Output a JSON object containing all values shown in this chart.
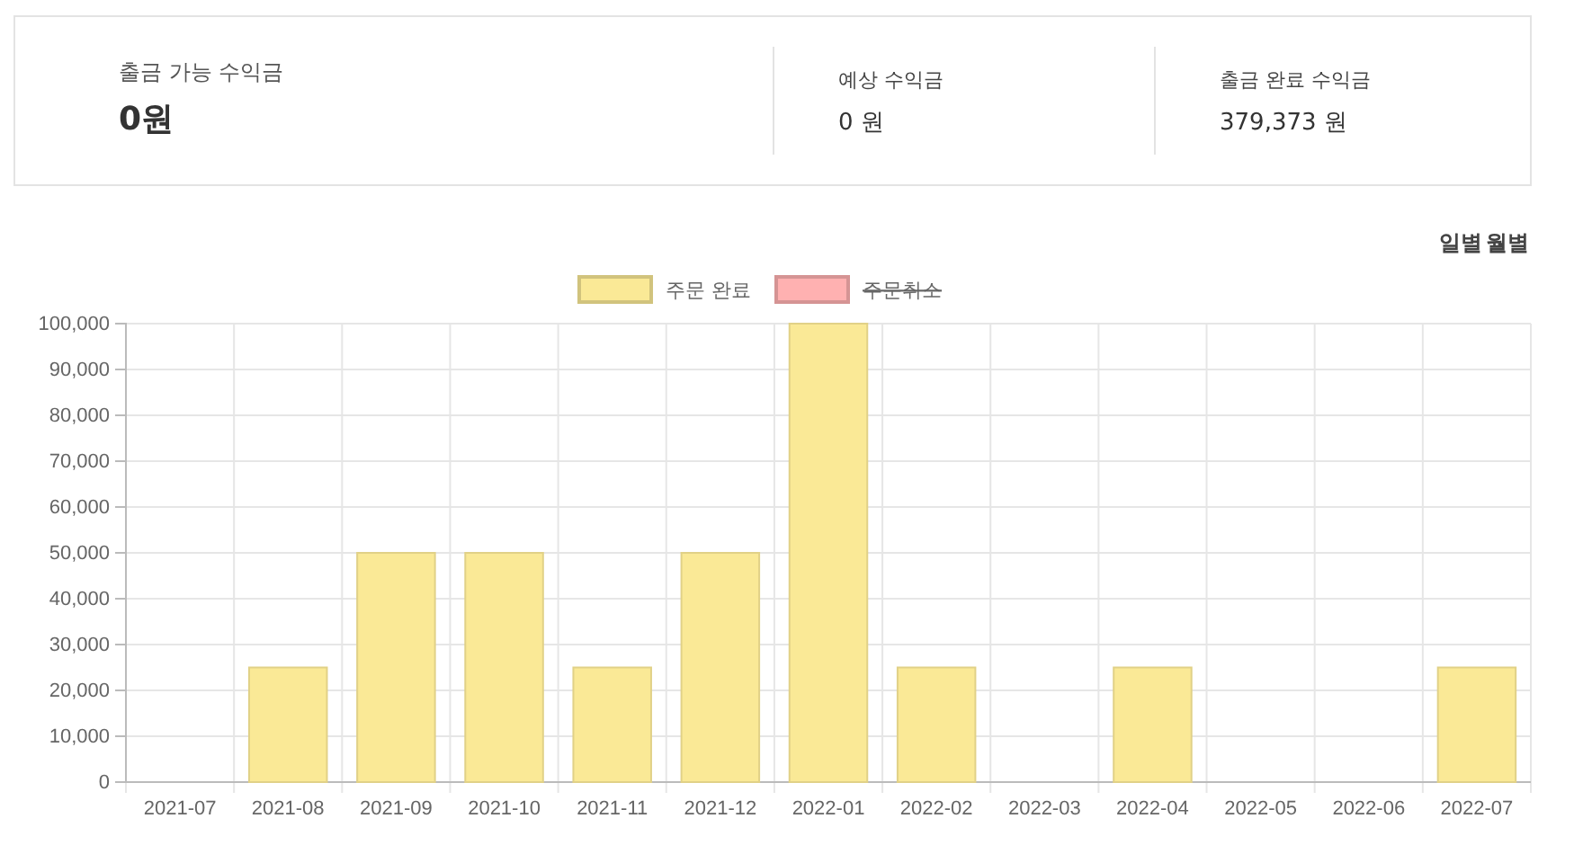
{
  "chart_data": [
    {
      "type": "other",
      "annotations": [
        "출금 가능 수익금",
        "0원",
        "예상 수익금",
        "0 원",
        "출금 완료 수익금",
        "379,373 원"
      ]
    },
    {
      "type": "bar",
      "categories": [
        "2021-07",
        "2021-08",
        "2021-09",
        "2021-10",
        "2021-11",
        "2021-12",
        "2022-01",
        "2022-02",
        "2022-03",
        "2022-04",
        "2022-05",
        "2022-06",
        "2022-07"
      ],
      "series": [
        {
          "name": "주문 완료",
          "color": "#fae996",
          "values": [
            0,
            25000,
            50000,
            50000,
            25000,
            50000,
            100000,
            25000,
            0,
            25000,
            0,
            0,
            25000
          ]
        },
        {
          "name": "주문취소",
          "color": "#ffb1b1",
          "values": [
            null,
            null,
            null,
            null,
            null,
            null,
            null,
            null,
            null,
            null,
            null,
            null,
            null
          ]
        }
      ],
      "ylim": [
        0,
        100000
      ],
      "yticks": [
        {
          "value": 0,
          "label": "0"
        },
        {
          "value": 10000,
          "label": "10,000"
        },
        {
          "value": 20000,
          "label": "20,000"
        },
        {
          "value": 30000,
          "label": "30,000"
        },
        {
          "value": 40000,
          "label": "40,000"
        },
        {
          "value": 50000,
          "label": "50,000"
        },
        {
          "value": 60000,
          "label": "60,000"
        },
        {
          "value": 70000,
          "label": "70,000"
        },
        {
          "value": 80000,
          "label": "80,000"
        },
        {
          "value": 90000,
          "label": "90,000"
        },
        {
          "value": 100000,
          "label": "100,000"
        }
      ],
      "grid": true,
      "legend": "top",
      "annotations": [
        "일별",
        "월별"
      ]
    }
  ]
}
